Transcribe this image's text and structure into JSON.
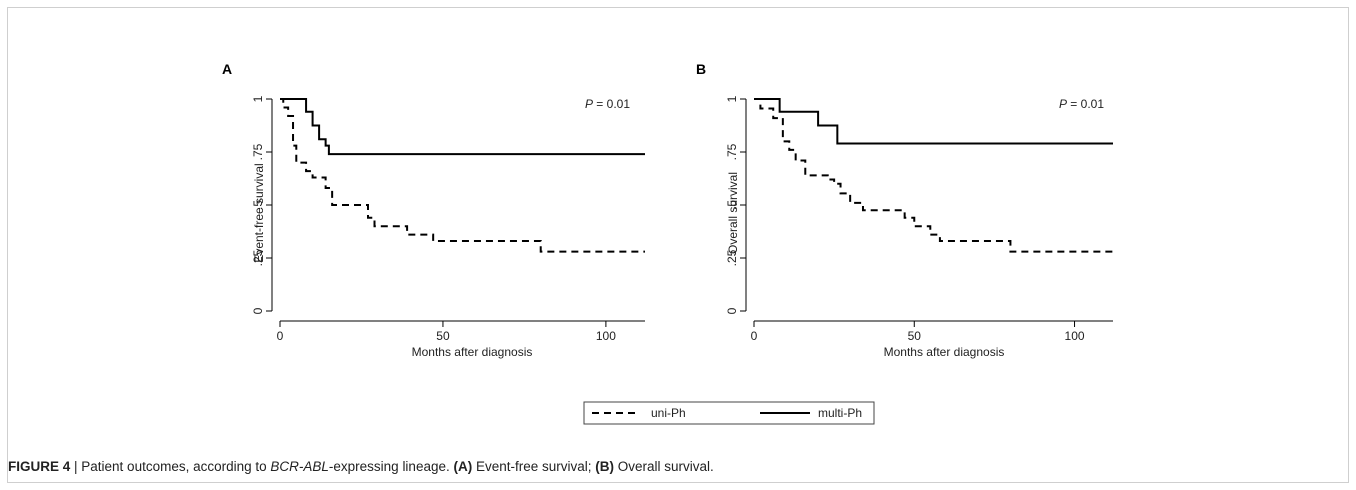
{
  "caption": {
    "label": "FIGURE 4",
    "sep": " | ",
    "text_before": "Patient outcomes, according to ",
    "gene": "BCR-ABL",
    "text_mid": "-expressing lineage. ",
    "panel_a_ref": "(A)",
    "panel_a_text": " Event-free survival; ",
    "panel_b_ref": "(B)",
    "panel_b_text": " Overall survival."
  },
  "legend": {
    "position": "bottom-center",
    "items": [
      {
        "label": "uni-Ph",
        "style": "dashed"
      },
      {
        "label": "multi-Ph",
        "style": "solid"
      }
    ]
  },
  "colors": {
    "line": "#000000",
    "text": "#222222"
  },
  "chart_data": [
    {
      "panel_label": "A",
      "type": "line",
      "step": true,
      "xlabel": "Months after diagnosis",
      "ylabel": "Event-free survival",
      "annotation_p": "P",
      "annotation_val": " = 0.01",
      "xlim": [
        0,
        112
      ],
      "ylim": [
        0,
        1
      ],
      "xticks": [
        {
          "v": 0,
          "label": "0"
        },
        {
          "v": 50,
          "label": "50"
        },
        {
          "v": 100,
          "label": "100"
        }
      ],
      "yticks": [
        {
          "v": 0,
          "label": "0"
        },
        {
          "v": 0.25,
          "label": ".25"
        },
        {
          "v": 0.5,
          "label": ".5"
        },
        {
          "v": 0.75,
          "label": ".75"
        },
        {
          "v": 1,
          "label": "1"
        }
      ],
      "series": [
        {
          "name": "uni-Ph",
          "style": "dashed",
          "x": [
            0,
            1,
            2.5,
            4,
            5,
            8,
            10,
            14,
            16,
            27,
            29,
            39,
            47,
            80,
            112
          ],
          "y": [
            1,
            0.96,
            0.92,
            0.78,
            0.7,
            0.66,
            0.63,
            0.58,
            0.5,
            0.44,
            0.4,
            0.36,
            0.33,
            0.28,
            0.28
          ]
        },
        {
          "name": "multi-Ph",
          "style": "solid",
          "x": [
            0,
            8,
            10,
            12,
            14,
            15,
            112
          ],
          "y": [
            1,
            0.94,
            0.875,
            0.81,
            0.78,
            0.74,
            0.74
          ]
        }
      ]
    },
    {
      "panel_label": "B",
      "type": "line",
      "step": true,
      "xlabel": "Months after diagnosis",
      "ylabel": "Overall survival",
      "annotation_p": "P",
      "annotation_val": " = 0.01",
      "xlim": [
        0,
        112
      ],
      "ylim": [
        0,
        1
      ],
      "xticks": [
        {
          "v": 0,
          "label": "0"
        },
        {
          "v": 50,
          "label": "50"
        },
        {
          "v": 100,
          "label": "100"
        }
      ],
      "yticks": [
        {
          "v": 0,
          "label": "0"
        },
        {
          "v": 0.25,
          "label": ".25"
        },
        {
          "v": 0.5,
          "label": ".5"
        },
        {
          "v": 0.75,
          "label": ".75"
        },
        {
          "v": 1,
          "label": "1"
        }
      ],
      "series": [
        {
          "name": "uni-Ph",
          "style": "dashed",
          "x": [
            0,
            2,
            6,
            9,
            11,
            13,
            16,
            20,
            23,
            25,
            27,
            30,
            34,
            47,
            50,
            55,
            58,
            62,
            70,
            80,
            112
          ],
          "y": [
            1,
            0.955,
            0.91,
            0.8,
            0.76,
            0.71,
            0.64,
            0.64,
            0.62,
            0.6,
            0.555,
            0.51,
            0.475,
            0.44,
            0.4,
            0.36,
            0.33,
            0.33,
            0.33,
            0.28,
            0.28
          ]
        },
        {
          "name": "multi-Ph",
          "style": "solid",
          "x": [
            0,
            8,
            20,
            26,
            112
          ],
          "y": [
            1,
            0.94,
            0.875,
            0.79,
            0.79
          ]
        }
      ]
    }
  ]
}
